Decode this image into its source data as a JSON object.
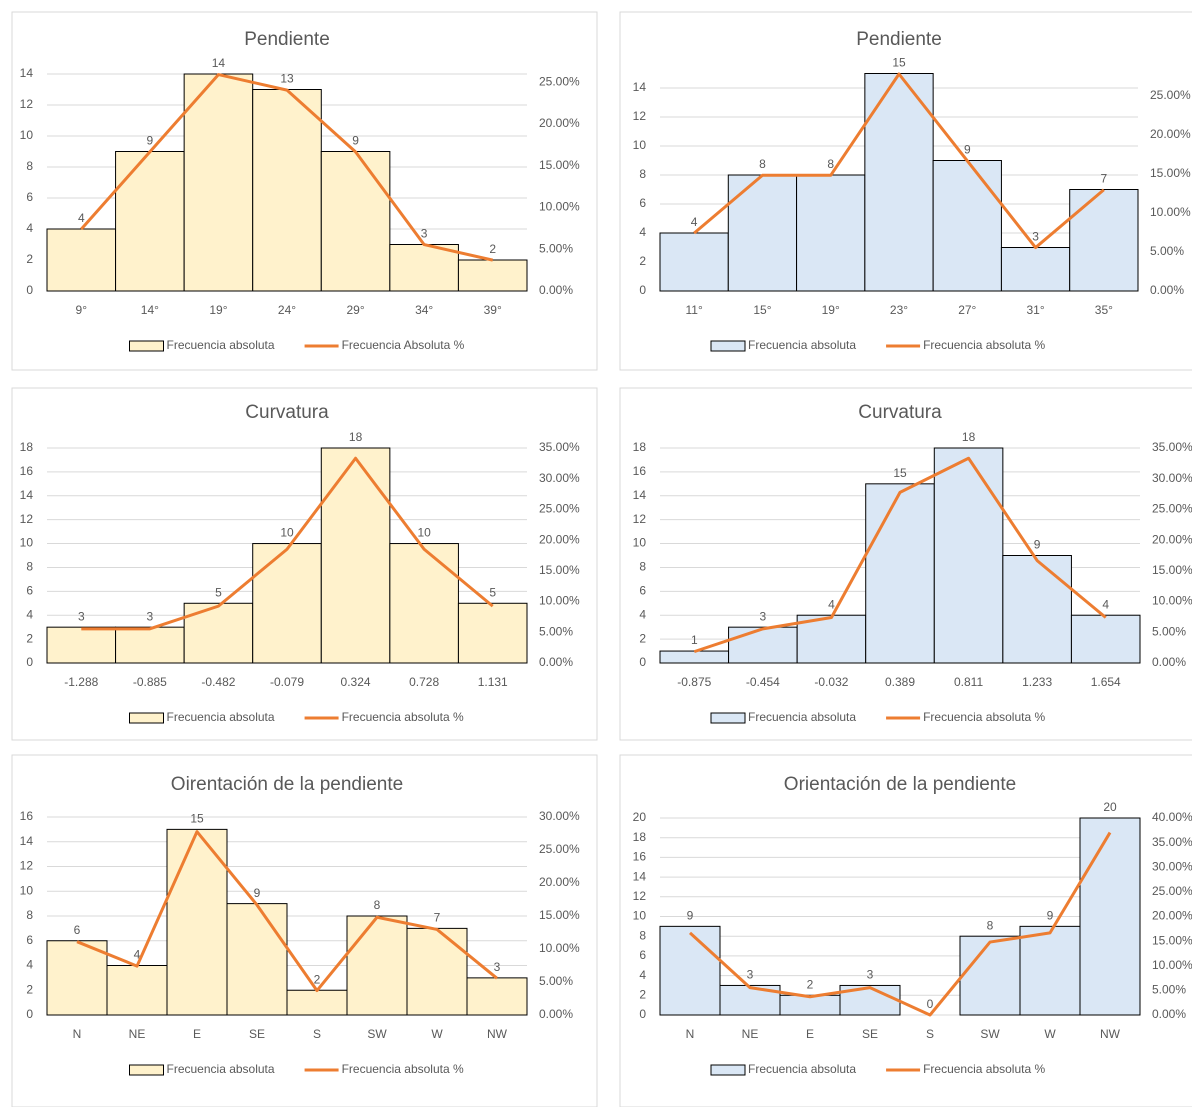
{
  "chart_data": [
    {
      "type": "bar",
      "title": "Pendiente",
      "categories": [
        "9°",
        "14°",
        "19°",
        "24°",
        "29°",
        "34°",
        "39°"
      ],
      "series": [
        {
          "name": "Frecuencia absoluta",
          "color": "#fff2cc",
          "values": [
            4,
            9,
            14,
            13,
            9,
            3,
            2
          ]
        },
        {
          "name": "Frecuencia Absoluta %",
          "color": "#ed7d31",
          "type": "line",
          "axis": "y2",
          "values": [
            7.41,
            16.67,
            25.93,
            24.07,
            16.67,
            5.56,
            3.7
          ]
        }
      ],
      "ylim": [
        0,
        14
      ],
      "yticks": [
        0,
        2,
        4,
        6,
        8,
        10,
        12,
        14
      ],
      "y2lim": [
        0,
        26
      ],
      "y2ticks": [
        {
          "value": 0,
          "label": "0.00%"
        },
        {
          "value": 5,
          "label": "5.00%"
        },
        {
          "value": 10,
          "label": "10.00%"
        },
        {
          "value": 15,
          "label": "15.00%"
        },
        {
          "value": 20,
          "label": "20.00%"
        },
        {
          "value": 25,
          "label": "25.00%"
        }
      ],
      "grid": true
    },
    {
      "type": "bar",
      "title": "Pendiente",
      "categories": [
        "11°",
        "15°",
        "19°",
        "23°",
        "27°",
        "31°",
        "35°"
      ],
      "series": [
        {
          "name": "Frecuencia absoluta",
          "color": "#dae7f5",
          "values": [
            4,
            8,
            8,
            15,
            9,
            3,
            7
          ]
        },
        {
          "name": "Frecuencia absoluta %",
          "color": "#ed7d31",
          "type": "line",
          "axis": "y2",
          "values": [
            7.41,
            14.81,
            14.81,
            27.78,
            16.67,
            5.56,
            12.96
          ]
        }
      ],
      "ylim": [
        0,
        16
      ],
      "yticks": [
        0,
        2,
        4,
        6,
        8,
        10,
        12,
        14
      ],
      "y2lim": [
        0,
        29.7
      ],
      "y2ticks": [
        {
          "value": 0,
          "label": "0.00%"
        },
        {
          "value": 5,
          "label": "5.00%"
        },
        {
          "value": 10,
          "label": "10.00%"
        },
        {
          "value": 15,
          "label": "15.00%"
        },
        {
          "value": 20,
          "label": "20.00%"
        },
        {
          "value": 25,
          "label": "25.00%"
        }
      ],
      "grid": true
    },
    {
      "type": "bar",
      "title": "Curvatura",
      "categories": [
        "-1.288",
        "-0.885",
        "-0.482",
        "-0.079",
        "0.324",
        "0.728",
        "1.131"
      ],
      "series": [
        {
          "name": "Frecuencia absoluta",
          "color": "#fff2cc",
          "values": [
            3,
            3,
            5,
            10,
            18,
            10,
            5
          ]
        },
        {
          "name": "Frecuencia absoluta %",
          "color": "#ed7d31",
          "type": "line",
          "axis": "y2",
          "values": [
            5.56,
            5.56,
            9.26,
            18.52,
            33.33,
            18.52,
            9.26
          ]
        }
      ],
      "ylim": [
        0,
        18
      ],
      "yticks": [
        0,
        2,
        4,
        6,
        8,
        10,
        12,
        14,
        16,
        18
      ],
      "y2lim": [
        0,
        35
      ],
      "y2ticks": [
        {
          "value": 0,
          "label": "0.00%"
        },
        {
          "value": 5,
          "label": "5.00%"
        },
        {
          "value": 10,
          "label": "10.00%"
        },
        {
          "value": 15,
          "label": "15.00%"
        },
        {
          "value": 20,
          "label": "20.00%"
        },
        {
          "value": 25,
          "label": "25.00%"
        },
        {
          "value": 30,
          "label": "30.00%"
        },
        {
          "value": 35,
          "label": "35.00%"
        }
      ],
      "grid": true
    },
    {
      "type": "bar",
      "title": "Curvatura",
      "categories": [
        "-0.875",
        "-0.454",
        "-0.032",
        "0.389",
        "0.811",
        "1.233",
        "1.654"
      ],
      "series": [
        {
          "name": "Frecuencia absoluta",
          "color": "#dae7f5",
          "values": [
            1,
            3,
            4,
            15,
            18,
            9,
            4
          ]
        },
        {
          "name": "Frecuencia absoluta %",
          "color": "#ed7d31",
          "type": "line",
          "axis": "y2",
          "values": [
            1.85,
            5.56,
            7.41,
            27.78,
            33.33,
            16.67,
            7.41
          ]
        }
      ],
      "ylim": [
        0,
        18
      ],
      "yticks": [
        0,
        2,
        4,
        6,
        8,
        10,
        12,
        14,
        16,
        18
      ],
      "y2lim": [
        0,
        35
      ],
      "y2ticks": [
        {
          "value": 0,
          "label": "0.00%"
        },
        {
          "value": 5,
          "label": "5.00%"
        },
        {
          "value": 10,
          "label": "10.00%"
        },
        {
          "value": 15,
          "label": "15.00%"
        },
        {
          "value": 20,
          "label": "20.00%"
        },
        {
          "value": 25,
          "label": "25.00%"
        },
        {
          "value": 30,
          "label": "30.00%"
        },
        {
          "value": 35,
          "label": "35.00%"
        }
      ],
      "grid": true
    },
    {
      "type": "bar",
      "title": "Oirentación de la pendiente",
      "categories": [
        "N",
        "NE",
        "E",
        "SE",
        "S",
        "SW",
        "W",
        "NW"
      ],
      "series": [
        {
          "name": "Frecuencia absoluta",
          "color": "#fff2cc",
          "values": [
            6,
            4,
            15,
            9,
            2,
            8,
            7,
            3
          ]
        },
        {
          "name": "Frecuencia absoluta %",
          "color": "#ed7d31",
          "type": "line",
          "axis": "y2",
          "values": [
            11.11,
            7.41,
            27.78,
            16.67,
            3.7,
            14.81,
            12.96,
            5.56
          ]
        }
      ],
      "ylim": [
        0,
        16
      ],
      "yticks": [
        0,
        2,
        4,
        6,
        8,
        10,
        12,
        14,
        16
      ],
      "y2lim": [
        0,
        30
      ],
      "y2ticks": [
        {
          "value": 0,
          "label": "0.00%"
        },
        {
          "value": 5,
          "label": "5.00%"
        },
        {
          "value": 10,
          "label": "10.00%"
        },
        {
          "value": 15,
          "label": "15.00%"
        },
        {
          "value": 20,
          "label": "20.00%"
        },
        {
          "value": 25,
          "label": "25.00%"
        },
        {
          "value": 30,
          "label": "30.00%"
        }
      ],
      "grid": true
    },
    {
      "type": "bar",
      "title": "Orientación de la pendiente",
      "categories": [
        "N",
        "NE",
        "E",
        "SE",
        "S",
        "SW",
        "W",
        "NW"
      ],
      "series": [
        {
          "name": "Frecuencia absoluta",
          "color": "#dae7f5",
          "values": [
            9,
            3,
            2,
            3,
            0,
            8,
            9,
            20
          ]
        },
        {
          "name": "Frecuencia absoluta %",
          "color": "#ed7d31",
          "type": "line",
          "axis": "y2",
          "values": [
            16.67,
            5.56,
            3.7,
            5.56,
            0,
            14.81,
            16.67,
            37.04
          ]
        }
      ],
      "ylim": [
        0,
        20
      ],
      "yticks": [
        0,
        2,
        4,
        6,
        8,
        10,
        12,
        14,
        16,
        18,
        20
      ],
      "y2lim": [
        0,
        40
      ],
      "y2ticks": [
        {
          "value": 0,
          "label": "0.00%"
        },
        {
          "value": 5,
          "label": "5.00%"
        },
        {
          "value": 10,
          "label": "10.00%"
        },
        {
          "value": 15,
          "label": "15.00%"
        },
        {
          "value": 20,
          "label": "20.00%"
        },
        {
          "value": 25,
          "label": "25.00%"
        },
        {
          "value": 30,
          "label": "30.00%"
        },
        {
          "value": 35,
          "label": "35.00%"
        },
        {
          "value": 40,
          "label": "40.00%"
        }
      ],
      "grid": true
    }
  ]
}
